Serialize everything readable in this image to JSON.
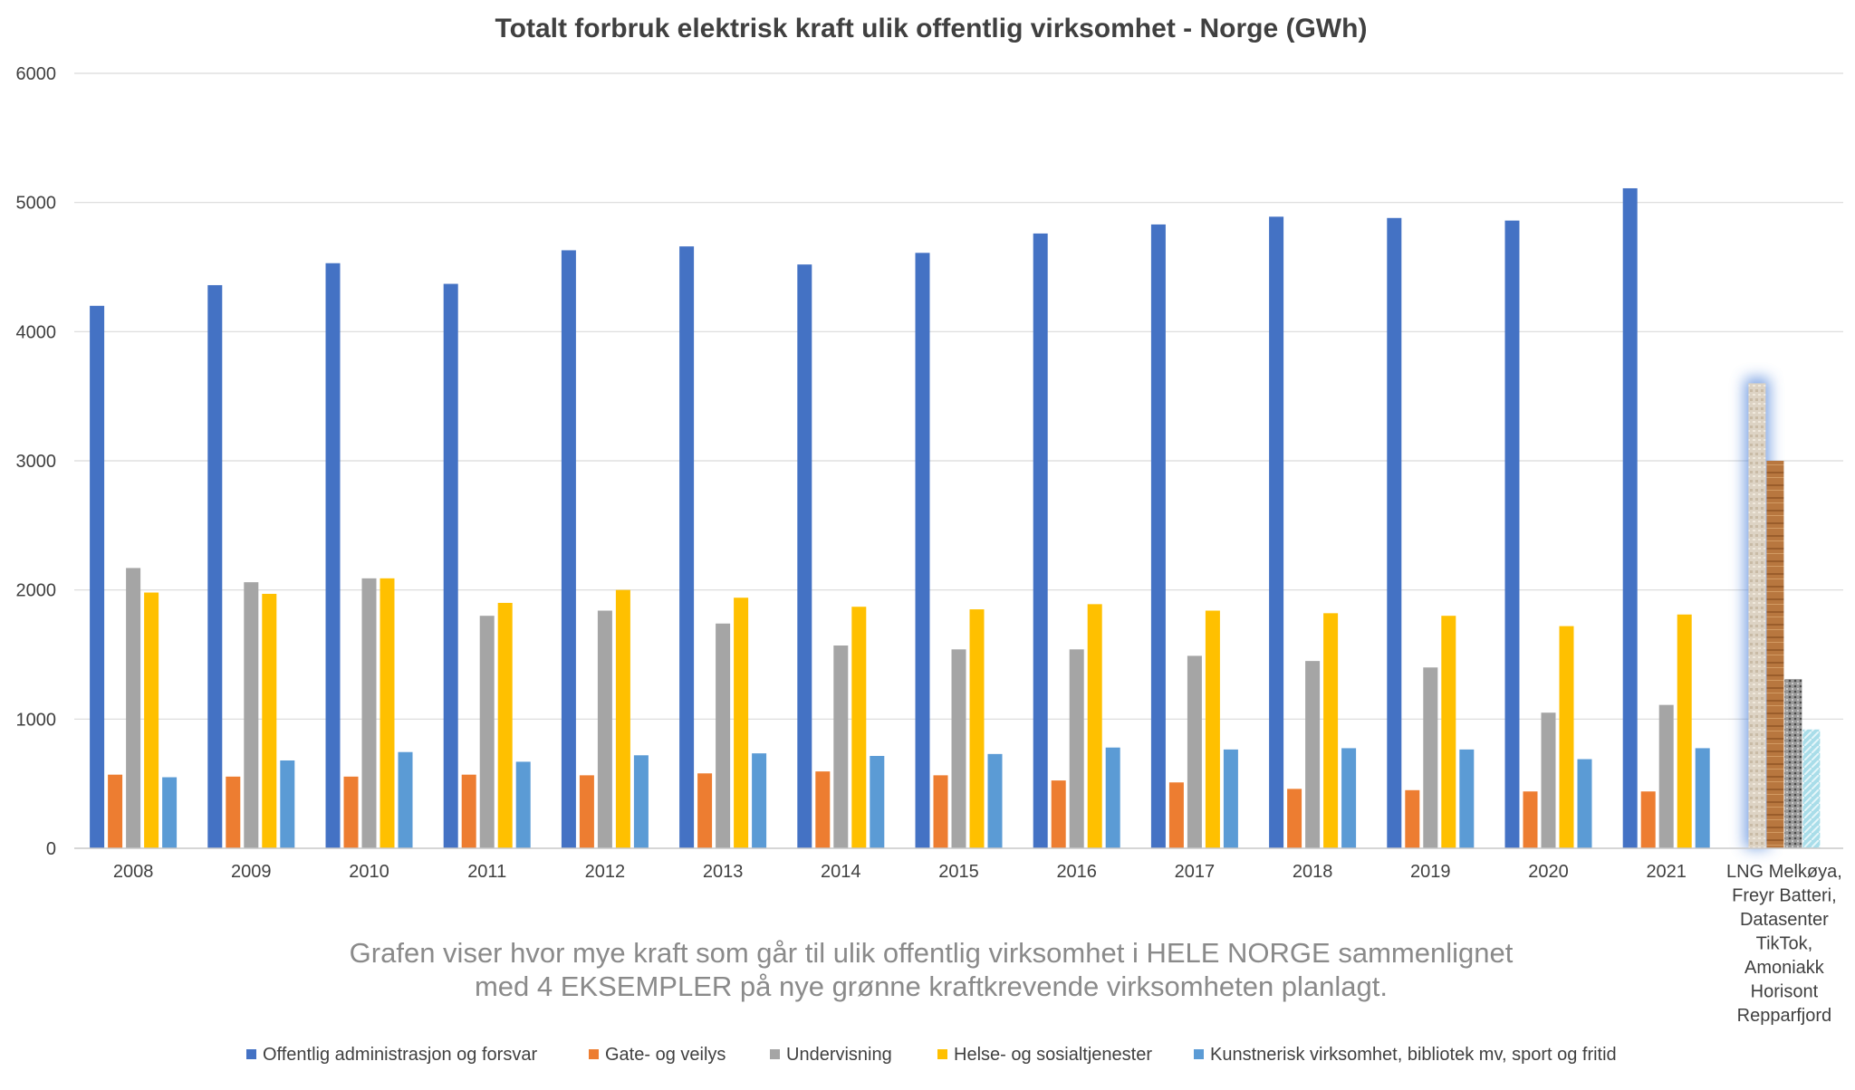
{
  "chart_data": {
    "type": "bar",
    "title": "Totalt forbruk elektrisk kraft ulik offentlig virksomhet - Norge (GWh)",
    "xlabel": "",
    "ylabel": "",
    "ylim": [
      0,
      6000
    ],
    "yticks": [
      0,
      1000,
      2000,
      3000,
      4000,
      5000,
      6000
    ],
    "grid": true,
    "legend_position": "bottom",
    "categories": [
      "2008",
      "2009",
      "2010",
      "2011",
      "2012",
      "2013",
      "2014",
      "2015",
      "2016",
      "2017",
      "2018",
      "2019",
      "2020",
      "2021"
    ],
    "series": [
      {
        "name": "Offentlig administrasjon og forsvar",
        "color": "#4472c4",
        "values": [
          4200,
          4360,
          4530,
          4370,
          4630,
          4660,
          4520,
          4610,
          4760,
          4830,
          4890,
          4880,
          4860,
          5110
        ]
      },
      {
        "name": "Gate- og veilys",
        "color": "#ed7d31",
        "values": [
          570,
          555,
          555,
          570,
          565,
          580,
          595,
          565,
          525,
          510,
          460,
          450,
          440,
          440
        ]
      },
      {
        "name": "Undervisning",
        "color": "#a5a5a5",
        "values": [
          2170,
          2060,
          2090,
          1800,
          1840,
          1740,
          1570,
          1540,
          1540,
          1490,
          1450,
          1400,
          1050,
          1110
        ]
      },
      {
        "name": "Helse- og sosialtjenester",
        "color": "#ffc000",
        "values": [
          1980,
          1970,
          2090,
          1900,
          2000,
          1940,
          1870,
          1850,
          1890,
          1840,
          1820,
          1800,
          1720,
          1810
        ]
      },
      {
        "name": "Kunstnerisk virksomhet, bibliotek mv, sport og fritid",
        "color": "#5b9bd5",
        "values": [
          550,
          680,
          745,
          670,
          720,
          735,
          715,
          730,
          780,
          765,
          775,
          765,
          690,
          775
        ]
      }
    ],
    "extra_category": {
      "label_lines": [
        "LNG Melkøya,",
        "Freyr Batteri,",
        "Datasenter",
        "TikTok,",
        "Amoniakk",
        "Horisont",
        "Repparfjord"
      ],
      "bars": [
        {
          "name": "LNG Melkøya",
          "value": 3600,
          "color": "#d9cfbf"
        },
        {
          "name": "Freyr Batteri",
          "value": 3000,
          "color": "#b8773f"
        },
        {
          "name": "Datasenter TikTok",
          "value": 1310,
          "color": "#a0a0a0"
        },
        {
          "name": "Amoniakk Horisont",
          "value": 920,
          "color": "#a8dbe8"
        }
      ]
    },
    "annotation_lines": [
      "Grafen viser hvor mye kraft som går til ulik offentlig virksomhet i HELE NORGE sammenlignet",
      "med 4 EKSEMPLER på nye grønne kraftkrevende virksomheten planlagt."
    ]
  }
}
